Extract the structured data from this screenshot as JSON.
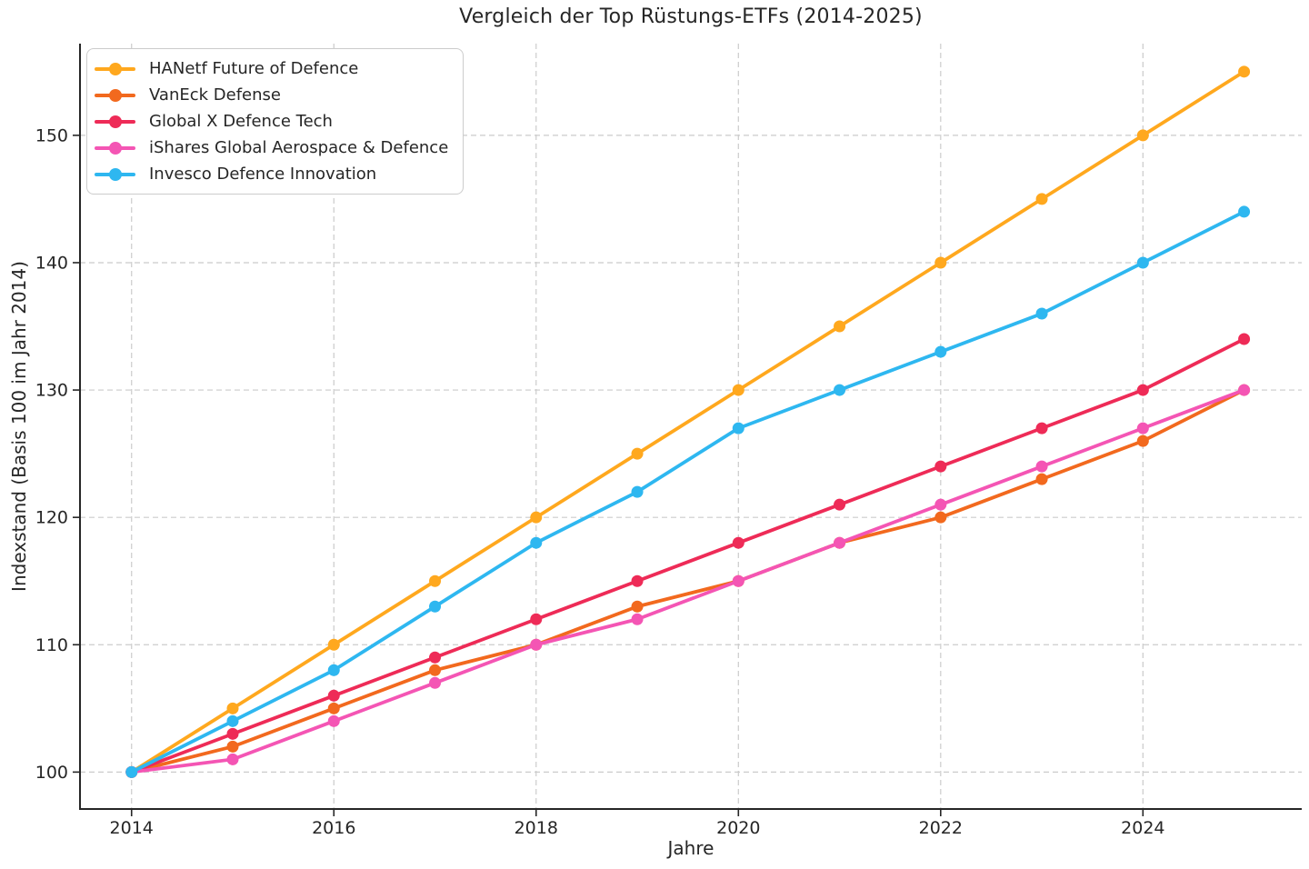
{
  "chart_data": {
    "type": "line",
    "title": "Vergleich der Top Rüstungs-ETFs (2014-2025)",
    "xlabel": "Jahre",
    "ylabel": "Indexstand (Basis 100 im Jahr 2014)",
    "x": [
      2014,
      2015,
      2016,
      2017,
      2018,
      2019,
      2020,
      2021,
      2022,
      2023,
      2024,
      2025
    ],
    "x_ticks": [
      2014,
      2016,
      2018,
      2020,
      2022,
      2024
    ],
    "y_ticks": [
      100,
      110,
      120,
      130,
      140,
      150
    ],
    "xlim": [
      2013.49,
      2025.57
    ],
    "ylim": [
      97.1,
      157.2
    ],
    "grid": true,
    "legend_position": "upper-left",
    "series": [
      {
        "name": "HANetf Future of Defence",
        "color": "#FFA81E",
        "values": [
          100,
          105,
          110,
          115,
          120,
          125,
          130,
          135,
          140,
          145,
          150,
          155
        ]
      },
      {
        "name": "VanEck Defense",
        "color": "#F2691E",
        "values": [
          100,
          102,
          105,
          108,
          110,
          113,
          115,
          118,
          120,
          123,
          126,
          130
        ]
      },
      {
        "name": "Global X Defence Tech",
        "color": "#EE2B57",
        "values": [
          100,
          103,
          106,
          109,
          112,
          115,
          118,
          121,
          124,
          127,
          130,
          134
        ]
      },
      {
        "name": "iShares Global Aerospace & Defence",
        "color": "#F455B4",
        "values": [
          100,
          101,
          104,
          107,
          110,
          112,
          115,
          118,
          121,
          124,
          127,
          130
        ]
      },
      {
        "name": "Invesco Defence Innovation",
        "color": "#2EB7F0",
        "values": [
          100,
          104,
          108,
          113,
          118,
          122,
          127,
          130,
          133,
          136,
          140,
          144
        ]
      }
    ]
  },
  "styles": {
    "background": "#ffffff",
    "text_color": "#262626",
    "grid_color": "#cbcbcb",
    "axis_color": "#262626",
    "tick_label_color": "#262626",
    "legend_border": "#cccccc",
    "legend_background": "#ffffff"
  }
}
